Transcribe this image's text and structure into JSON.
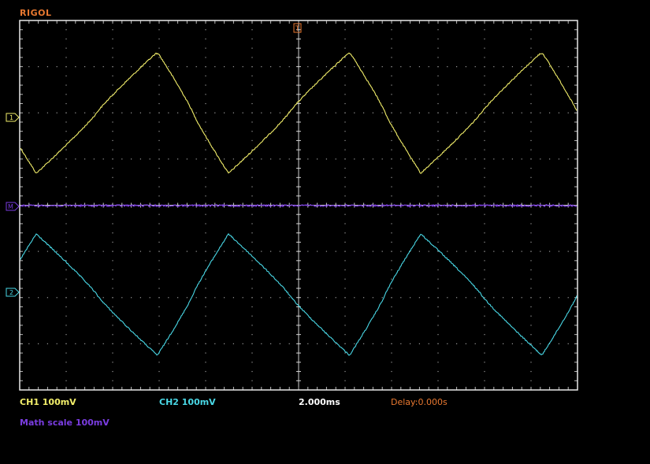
{
  "brand": "RIGOL",
  "colors": {
    "background": "#000000",
    "grid": "#9a9a9a",
    "brand": "#e87830",
    "ch1": "#f2ee6a",
    "ch2": "#49d8e6",
    "math": "#7a3ce0",
    "delay": "#e87830",
    "timebase": "#ffffff",
    "trigger": "#e87830"
  },
  "markers": {
    "ch1": "1",
    "ch2": "2",
    "math": "M",
    "trigger": "T"
  },
  "status": {
    "ch1_scale": "CH1 100mV",
    "ch2_scale": "CH2 100mV",
    "timebase": "2.000ms",
    "delay": "Delay:0.000s",
    "math_scale": "Math scale 100mV"
  },
  "display": {
    "h_divisions": 12,
    "v_divisions": 8,
    "volts_per_div_mV": 100,
    "time_per_div_ms": 2
  },
  "waveforms": {
    "ch1": {
      "label": "CH1",
      "type": "asymmetric-triangle",
      "period_div": 4.18,
      "amplitude_div": 2.6,
      "offset_div": 0
    },
    "ch2": {
      "label": "CH2",
      "type": "asymmetric-triangle",
      "period_div": 4.18,
      "amplitude_div": 2.6,
      "offset_div": 0
    },
    "math": {
      "label": "Math",
      "type": "flat",
      "value_div": 0
    }
  }
}
